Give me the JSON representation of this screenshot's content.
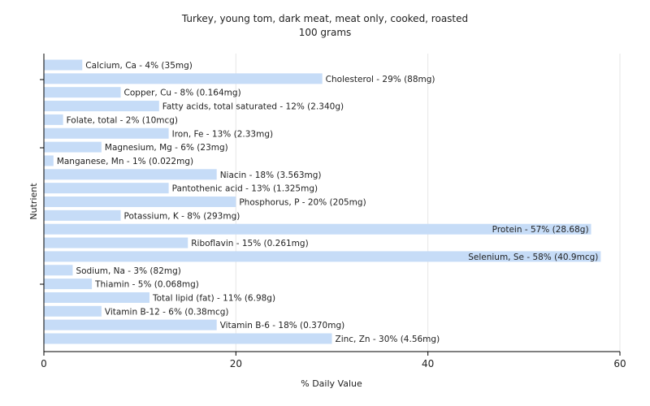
{
  "chart_data": {
    "type": "bar",
    "orientation": "horizontal",
    "title": "Turkey, young tom, dark meat, meat only, cooked, roasted",
    "subtitle": "100 grams",
    "xlabel": "% Daily Value",
    "ylabel": "Nutrient",
    "xlim": [
      0,
      60
    ],
    "xticks": [
      0,
      20,
      40,
      60
    ],
    "grid": true,
    "bar_color": "#c6dcf7",
    "categories": [
      "Calcium, Ca",
      "Cholesterol",
      "Copper, Cu",
      "Fatty acids, total saturated",
      "Folate, total",
      "Iron, Fe",
      "Magnesium, Mg",
      "Manganese, Mn",
      "Niacin",
      "Pantothenic acid",
      "Phosphorus, P",
      "Potassium, K",
      "Protein",
      "Riboflavin",
      "Selenium, Se",
      "Sodium, Na",
      "Thiamin",
      "Total lipid (fat)",
      "Vitamin B-12",
      "Vitamin B-6",
      "Zinc, Zn"
    ],
    "values": [
      4,
      29,
      8,
      12,
      2,
      13,
      6,
      1,
      18,
      13,
      20,
      8,
      57,
      15,
      58,
      3,
      5,
      11,
      6,
      18,
      30
    ],
    "labels": [
      "Calcium, Ca - 4% (35mg)",
      "Cholesterol - 29% (88mg)",
      "Copper, Cu - 8% (0.164mg)",
      "Fatty acids, total saturated - 12% (2.340g)",
      "Folate, total - 2% (10mcg)",
      "Iron, Fe - 13% (2.33mg)",
      "Magnesium, Mg - 6% (23mg)",
      "Manganese, Mn - 1% (0.022mg)",
      "Niacin - 18% (3.563mg)",
      "Pantothenic acid - 13% (1.325mg)",
      "Phosphorus, P - 20% (205mg)",
      "Potassium, K - 8% (293mg)",
      "Protein - 57% (28.68g)",
      "Riboflavin - 15% (0.261mg)",
      "Selenium, Se - 58% (40.9mcg)",
      "Sodium, Na - 3% (82mg)",
      "Thiamin - 5% (0.068mg)",
      "Total lipid (fat) - 11% (6.98g)",
      "Vitamin B-12 - 6% (0.38mcg)",
      "Vitamin B-6 - 18% (0.370mg)",
      "Zinc, Zn - 30% (4.56mg)"
    ]
  }
}
